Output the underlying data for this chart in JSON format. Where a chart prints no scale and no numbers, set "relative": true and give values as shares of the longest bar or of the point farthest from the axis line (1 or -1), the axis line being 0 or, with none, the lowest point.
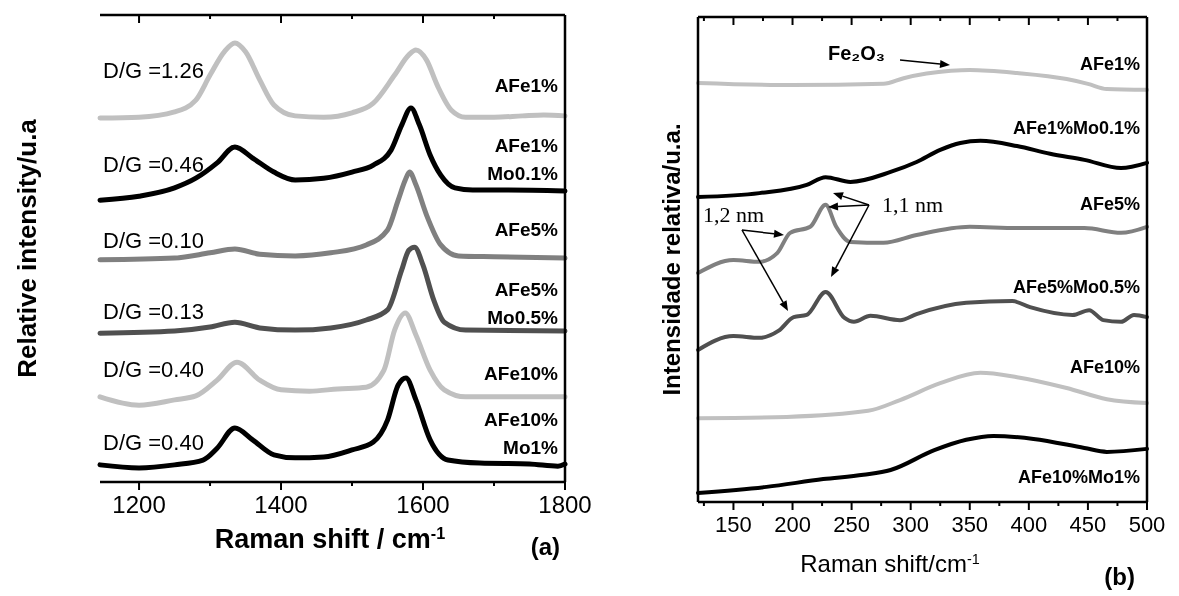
{
  "chart_data": [
    {
      "type": "line",
      "relative": true,
      "xlabel": "Raman shift / cm$^{-1}$",
      "ylabel": "Relative intensity/u.a",
      "xlim": [
        1145,
        1800
      ],
      "xticks": [
        1200,
        {
          "value": 1300,
          "label": null
        },
        1400,
        {
          "value": 1500,
          "label": null
        },
        1600,
        {
          "value": 1700,
          "label": null
        },
        1800
      ],
      "annotations": [
        "D/G =1.26",
        "D/G =0.46",
        "D/G =0.10",
        "D/G =0.13",
        "D/G =0.40",
        "D/G =0.40",
        "(a)"
      ],
      "series": [
        {
          "name": "AFe1%",
          "color": "#c0c0c0",
          "x": [
            1145,
            1200,
            1250,
            1280,
            1300,
            1320,
            1335,
            1350,
            1370,
            1390,
            1420,
            1460,
            1500,
            1530,
            1560,
            1580,
            1590,
            1605,
            1620,
            1640,
            1660,
            1700,
            1740,
            1770,
            1800
          ],
          "values": [
            0.829,
            0.831,
            0.843,
            0.87,
            0.927,
            0.98,
            1.0,
            0.98,
            0.916,
            0.859,
            0.834,
            0.831,
            0.841,
            0.863,
            0.927,
            0.973,
            0.984,
            0.961,
            0.904,
            0.847,
            0.831,
            0.831,
            0.834,
            0.836,
            0.834
          ]
        },
        {
          "name": "AFe1% Mo0.1%",
          "color": "#000000",
          "x": [
            1145,
            1200,
            1250,
            1280,
            1310,
            1335,
            1360,
            1390,
            1420,
            1460,
            1500,
            1530,
            1555,
            1570,
            1583,
            1595,
            1610,
            1625,
            1645,
            1670,
            1720,
            1800
          ],
          "values": [
            0.642,
            0.651,
            0.67,
            0.692,
            0.727,
            0.763,
            0.738,
            0.706,
            0.688,
            0.692,
            0.706,
            0.722,
            0.756,
            0.813,
            0.852,
            0.813,
            0.745,
            0.699,
            0.67,
            0.665,
            0.665,
            0.663
          ]
        },
        {
          "name": "AFe5%",
          "color": "#808080",
          "x": [
            1145,
            1250,
            1300,
            1335,
            1370,
            1420,
            1470,
            1520,
            1550,
            1565,
            1575,
            1581,
            1590,
            1605,
            1625,
            1650,
            1700,
            1800
          ],
          "values": [
            0.506,
            0.51,
            0.522,
            0.531,
            0.519,
            0.515,
            0.522,
            0.54,
            0.574,
            0.642,
            0.688,
            0.706,
            0.677,
            0.608,
            0.54,
            0.515,
            0.513,
            0.51
          ]
        },
        {
          "name": "AFe5% Mo0.5%",
          "color": "#505050",
          "x": [
            1145,
            1250,
            1300,
            1335,
            1370,
            1420,
            1470,
            1520,
            1550,
            1570,
            1580,
            1588,
            1600,
            1615,
            1630,
            1660,
            1800
          ],
          "values": [
            0.339,
            0.344,
            0.353,
            0.364,
            0.351,
            0.346,
            0.351,
            0.369,
            0.392,
            0.483,
            0.528,
            0.535,
            0.494,
            0.415,
            0.364,
            0.346,
            0.344
          ]
        },
        {
          "name": "AFe10%",
          "color": "#c0c0c0",
          "x": [
            1145,
            1200,
            1250,
            1280,
            1310,
            1338,
            1370,
            1400,
            1440,
            1480,
            1520,
            1545,
            1560,
            1575,
            1590,
            1610,
            1630,
            1660,
            1700,
            1800
          ],
          "values": [
            0.194,
            0.175,
            0.187,
            0.196,
            0.232,
            0.273,
            0.232,
            0.21,
            0.207,
            0.212,
            0.216,
            0.255,
            0.346,
            0.385,
            0.335,
            0.255,
            0.21,
            0.194,
            0.194,
            0.194
          ]
        },
        {
          "name": "AFe10% Mo1%",
          "color": "#000000",
          "x": [
            1145,
            1200,
            1250,
            1290,
            1310,
            1335,
            1360,
            1390,
            1420,
            1460,
            1500,
            1530,
            1550,
            1565,
            1576,
            1590,
            1610,
            1635,
            1680,
            1750,
            1790,
            1800
          ],
          "values": [
            0.039,
            0.032,
            0.039,
            0.05,
            0.077,
            0.123,
            0.096,
            0.062,
            0.055,
            0.057,
            0.073,
            0.091,
            0.141,
            0.221,
            0.237,
            0.187,
            0.096,
            0.05,
            0.043,
            0.041,
            0.036,
            0.041
          ]
        }
      ]
    },
    {
      "type": "line",
      "relative": true,
      "xlabel": "Raman shift/cm$^{-1}$",
      "ylabel": "Intensidade relativa/u.a.",
      "xlim": [
        120,
        500
      ],
      "xticks": [
        {
          "value": 125,
          "label": null
        },
        150,
        {
          "value": 175,
          "label": null
        },
        200,
        {
          "value": 225,
          "label": null
        },
        250,
        {
          "value": 275,
          "label": null
        },
        300,
        {
          "value": 325,
          "label": null
        },
        350,
        {
          "value": 375,
          "label": null
        },
        400,
        {
          "value": 425,
          "label": null
        },
        450,
        {
          "value": 475,
          "label": null
        },
        500
      ],
      "annotations": [
        "Fe₂O₃",
        "1,1 nm",
        "1,2 nm",
        "(b)"
      ],
      "series": [
        {
          "name": "AFe1%",
          "color": "#c0c0c0",
          "x": [
            120,
            200,
            277,
            294,
            334,
            350,
            390,
            432,
            450,
            466,
            500
          ],
          "values": [
            0.97,
            0.965,
            0.968,
            0.981,
            0.998,
            1.0,
            0.993,
            0.979,
            0.968,
            0.956,
            0.954
          ]
        },
        {
          "name": "AFe1%Mo0.1%",
          "color": "#000000",
          "x": [
            120,
            172,
            212,
            228,
            249,
            283,
            305,
            325,
            342,
            359,
            390,
            418,
            447,
            478,
            500
          ],
          "values": [
            0.706,
            0.715,
            0.734,
            0.752,
            0.741,
            0.764,
            0.787,
            0.815,
            0.831,
            0.836,
            0.824,
            0.806,
            0.792,
            0.773,
            0.785
          ]
        },
        {
          "name": "AFe5%",
          "color": "#808080",
          "x": [
            120,
            150,
            172,
            187,
            198,
            215,
            228,
            237,
            249,
            277,
            305,
            350,
            390,
            447,
            478,
            500
          ],
          "values": [
            0.53,
            0.56,
            0.556,
            0.576,
            0.623,
            0.637,
            0.688,
            0.637,
            0.602,
            0.6,
            0.618,
            0.637,
            0.634,
            0.634,
            0.623,
            0.637
          ]
        },
        {
          "name": "AFe5%Mo0.5%",
          "color": "#505050",
          "x": [
            120,
            150,
            172,
            188,
            201,
            212,
            228,
            244,
            252,
            266,
            291,
            305,
            347,
            386,
            401,
            437,
            451,
            463,
            478,
            489,
            500
          ],
          "values": [
            0.352,
            0.384,
            0.38,
            0.396,
            0.428,
            0.433,
            0.486,
            0.426,
            0.417,
            0.431,
            0.421,
            0.435,
            0.461,
            0.465,
            0.451,
            0.433,
            0.444,
            0.421,
            0.417,
            0.433,
            0.428
          ]
        },
        {
          "name": "AFe10%",
          "color": "#c0c0c0",
          "x": [
            120,
            195,
            264,
            291,
            325,
            359,
            390,
            432,
            466,
            500
          ],
          "values": [
            0.194,
            0.197,
            0.211,
            0.236,
            0.275,
            0.299,
            0.289,
            0.264,
            0.238,
            0.229
          ]
        },
        {
          "name": "AFe10%Mo1%",
          "color": "#000000",
          "x": [
            120,
            178,
            226,
            260,
            283,
            320,
            347,
            370,
            404,
            447,
            466,
            500
          ],
          "values": [
            0.021,
            0.035,
            0.053,
            0.063,
            0.074,
            0.12,
            0.144,
            0.153,
            0.146,
            0.125,
            0.116,
            0.123
          ]
        }
      ]
    }
  ]
}
